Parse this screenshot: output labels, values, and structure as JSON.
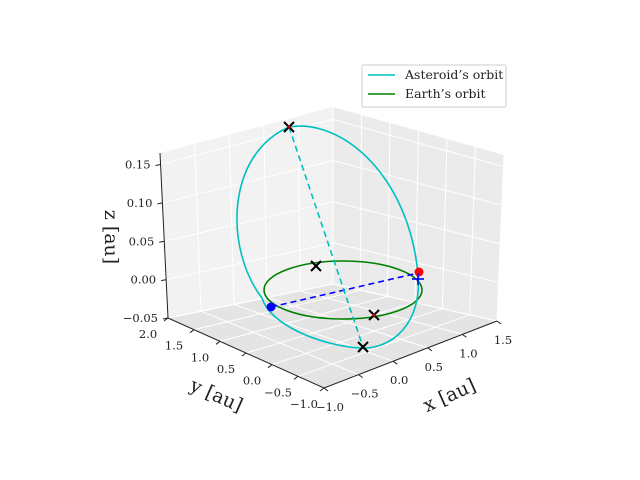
{
  "chart_data": {
    "type": "line",
    "projection": "3d",
    "xlabel": "x [au]",
    "ylabel": "y [au]",
    "zlabel": "z [au]",
    "xlim": [
      -1.0,
      1.5
    ],
    "ylim": [
      -1.0,
      2.0
    ],
    "zlim": [
      -0.05,
      0.15
    ],
    "xticks": [
      "−1.0",
      "−0.5",
      "0.0",
      "0.5",
      "1.0",
      "1.5"
    ],
    "yticks": [
      "−1.0",
      "−0.5",
      "0.0",
      "0.5",
      "1.0",
      "1.5",
      "2.0"
    ],
    "zticks": [
      "−0.05",
      "0.00",
      "0.05",
      "0.10",
      "0.15"
    ],
    "grid": true,
    "legend_position": "top-right",
    "legend": [
      "Asteroid’s orbit",
      "Earth’s orbit"
    ],
    "series": [
      {
        "name": "Asteroid’s orbit",
        "color": "#00bfbf",
        "shape": "ellipse"
      },
      {
        "name": "Earth’s orbit",
        "color": "#008000",
        "shape": "circle"
      }
    ],
    "markers": {
      "earth_position": {
        "color": "#ff0000"
      },
      "asteroid_position": {
        "color": "#0000ff"
      },
      "cross_color": "#000000",
      "sun_cross_color": "#0000ff"
    },
    "connector_lines": [
      {
        "color": "#0000ff",
        "style": "dashed"
      },
      {
        "color": "#00bfbf",
        "style": "dashed"
      }
    ]
  }
}
